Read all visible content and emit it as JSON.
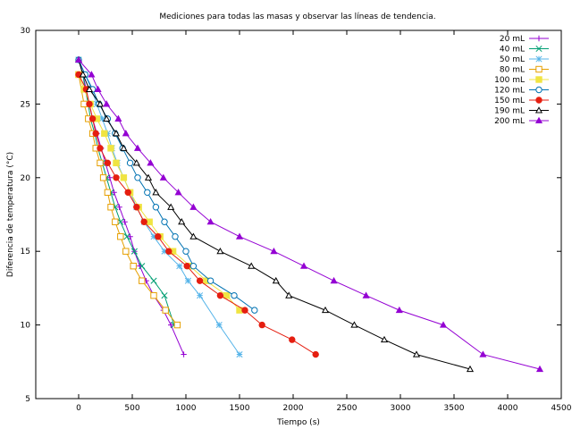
{
  "chart_data": {
    "type": "line",
    "title": "Mediciones para todas las masas y observar las líneas de tendencia.",
    "xlabel": "Tiempo (s)",
    "ylabel": "Diferencia de temperatura (°C)",
    "xlim": [
      -400,
      4500
    ],
    "ylim": [
      5,
      30
    ],
    "xticks": [
      0,
      500,
      1000,
      1500,
      2000,
      2500,
      3000,
      3500,
      4000,
      4500
    ],
    "yticks": [
      5,
      10,
      15,
      20,
      25,
      30
    ],
    "grid": false,
    "legend_position": "top-right",
    "series": [
      {
        "name": "20 mL",
        "color": "#9400d3",
        "marker": "plus",
        "x": [
          0,
          40,
          70,
          100,
          130,
          170,
          210,
          250,
          290,
          330,
          380,
          430,
          480,
          520,
          570,
          630,
          700,
          790,
          860,
          980
        ],
        "y": [
          28,
          27,
          26,
          25,
          24,
          23,
          22,
          21,
          20,
          19,
          18,
          17,
          16,
          15,
          14,
          13,
          12,
          11,
          10,
          8
        ]
      },
      {
        "name": "40 mL",
        "color": "#009e73",
        "marker": "x",
        "x": [
          0,
          40,
          60,
          90,
          110,
          150,
          180,
          220,
          260,
          300,
          340,
          390,
          450,
          520,
          590,
          700,
          800,
          890
        ],
        "y": [
          28,
          27,
          26,
          25,
          24,
          23,
          22,
          21,
          20,
          19,
          18,
          17,
          16,
          15,
          14,
          13,
          12,
          10
        ]
      },
      {
        "name": "50 mL",
        "color": "#56b4e9",
        "marker": "asterisk",
        "x": [
          0,
          60,
          120,
          170,
          220,
          270,
          310,
          360,
          420,
          480,
          540,
          610,
          700,
          800,
          940,
          1020,
          1130,
          1310,
          1500
        ],
        "y": [
          28,
          27,
          26,
          25,
          24,
          23,
          22,
          21,
          20,
          19,
          18,
          17,
          16,
          15,
          14,
          13,
          12,
          10,
          8
        ]
      },
      {
        "name": "80 mL",
        "color": "#e69f00",
        "marker": "square-open",
        "x": [
          0,
          50,
          90,
          130,
          160,
          200,
          230,
          270,
          300,
          340,
          390,
          440,
          510,
          590,
          700,
          810,
          920
        ],
        "y": [
          27,
          25,
          24,
          23,
          22,
          21,
          20,
          19,
          18,
          17,
          16,
          15,
          14,
          13,
          12,
          11,
          10
        ]
      },
      {
        "name": "100 mL",
        "color": "#f0e442",
        "marker": "square",
        "x": [
          0,
          50,
          110,
          170,
          240,
          300,
          350,
          420,
          480,
          560,
          660,
          760,
          880,
          1040,
          1190,
          1380,
          1500
        ],
        "y": [
          27,
          26,
          25,
          24,
          23,
          22,
          21,
          20,
          19,
          18,
          17,
          16,
          15,
          14,
          13,
          12,
          11
        ]
      },
      {
        "name": "120 mL",
        "color": "#0072b2",
        "marker": "circle-open",
        "x": [
          0,
          60,
          130,
          190,
          270,
          340,
          410,
          480,
          550,
          640,
          720,
          800,
          900,
          1000,
          1070,
          1230,
          1450,
          1640
        ],
        "y": [
          28,
          27,
          26,
          25,
          24,
          23,
          22,
          21,
          20,
          19,
          18,
          17,
          16,
          15,
          14,
          13,
          12,
          11
        ]
      },
      {
        "name": "150 mL",
        "color": "#e51e10",
        "marker": "circle",
        "x": [
          0,
          70,
          100,
          130,
          160,
          200,
          270,
          350,
          460,
          540,
          610,
          740,
          840,
          1010,
          1130,
          1320,
          1550,
          1710,
          1990,
          2210
        ],
        "y": [
          27,
          26,
          25,
          24,
          23,
          22,
          21,
          20,
          19,
          18,
          17,
          16,
          15,
          14,
          13,
          12,
          11,
          10,
          9,
          8
        ]
      },
      {
        "name": "190 mL",
        "color": "#000000",
        "marker": "triangle-open",
        "x": [
          0,
          40,
          100,
          200,
          260,
          350,
          420,
          540,
          650,
          720,
          860,
          960,
          1070,
          1320,
          1610,
          1840,
          1960,
          2300,
          2570,
          2850,
          3150,
          3650
        ],
        "y": [
          28,
          27,
          26,
          25,
          24,
          23,
          22,
          21,
          20,
          19,
          18,
          17,
          16,
          15,
          14,
          13,
          12,
          11,
          10,
          9,
          8,
          7
        ]
      },
      {
        "name": "200 mL",
        "color": "#9400d3",
        "marker": "triangle",
        "x": [
          0,
          120,
          180,
          260,
          370,
          440,
          550,
          670,
          790,
          930,
          1070,
          1230,
          1500,
          1820,
          2100,
          2380,
          2680,
          2990,
          3400,
          3770,
          4300
        ],
        "y": [
          28,
          27,
          26,
          25,
          24,
          23,
          22,
          21,
          20,
          19,
          18,
          17,
          16,
          15,
          14,
          13,
          12,
          11,
          10,
          8,
          7
        ]
      }
    ]
  }
}
